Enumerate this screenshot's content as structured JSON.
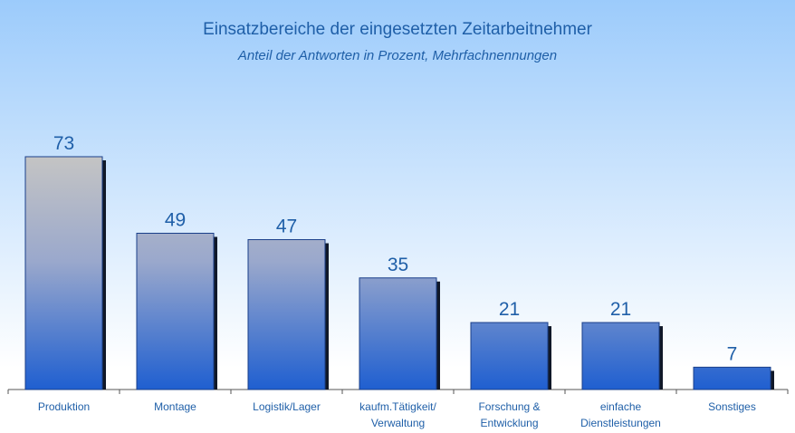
{
  "chart_data": {
    "type": "bar",
    "title": "Einsatzbereiche der eingesetzten Zeitarbeitnehmer",
    "subtitle": "Anteil der Antworten in Prozent, Mehrfachnennungen",
    "categories": [
      "Produktion",
      "Montage",
      "Logistik/Lager",
      "kaufm.Tätigkeit/\nVerwaltung",
      "Forschung &\nEntwicklung",
      "einfache\nDienstleistungen",
      "Sonstiges"
    ],
    "values": [
      73,
      49,
      47,
      35,
      21,
      21,
      7
    ],
    "color": "#1f5fd0"
  }
}
